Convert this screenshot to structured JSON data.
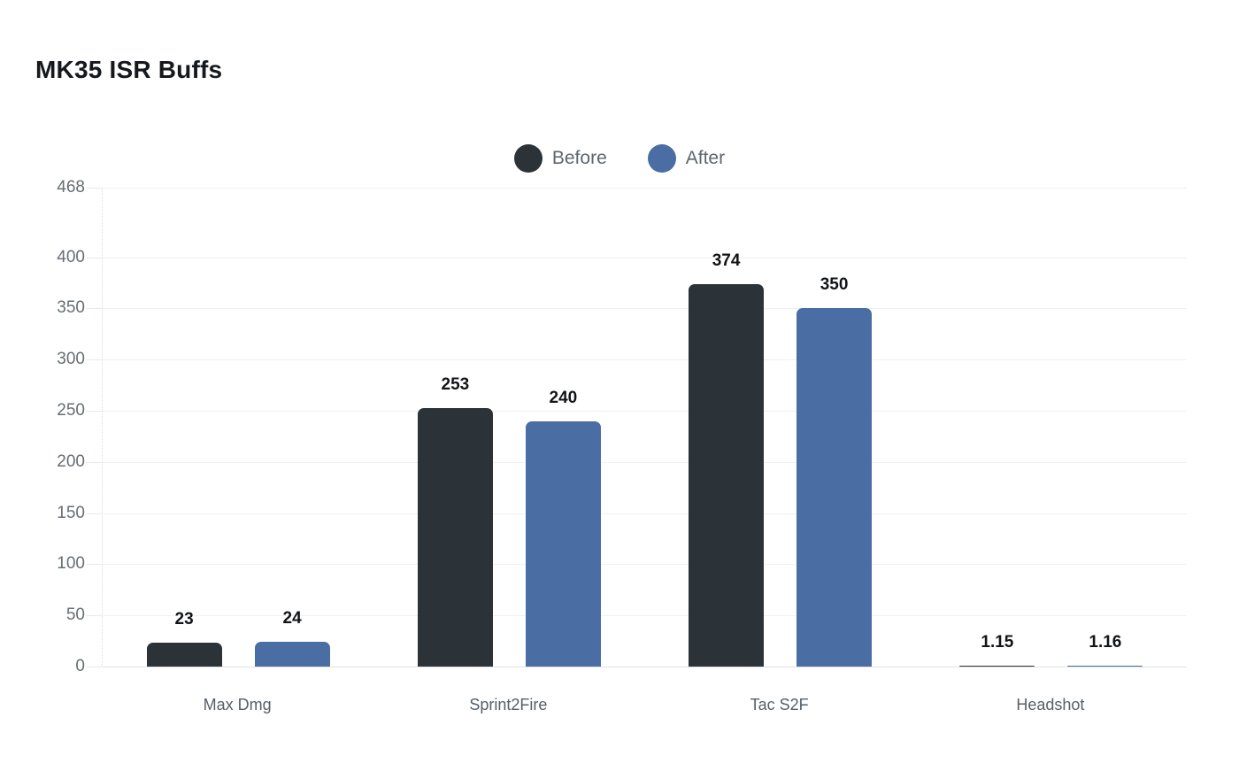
{
  "chart_data": {
    "type": "bar",
    "title": "MK35 ISR Buffs",
    "categories": [
      "Max Dmg",
      "Sprint2Fire",
      "Tac S2F",
      "Headshot"
    ],
    "series": [
      {
        "name": "Before",
        "color": "#2b3338",
        "values": [
          23,
          253,
          374,
          1.15
        ]
      },
      {
        "name": "After",
        "color": "#4a6da3",
        "values": [
          24,
          240,
          350,
          1.16
        ]
      }
    ],
    "xlabel": "",
    "ylabel": "",
    "ylim": [
      0,
      468
    ],
    "yticks": [
      0,
      50,
      100,
      150,
      200,
      250,
      300,
      350,
      400,
      468
    ],
    "grid": true,
    "legend_position": "top-center",
    "value_labels_shown": true,
    "background": "#ffffff",
    "text_colors": {
      "title": "#15191d",
      "axis_ticks": "#666e74",
      "categories": "#565f66",
      "value_labels": "#121417",
      "legend": "#5d666e"
    }
  }
}
